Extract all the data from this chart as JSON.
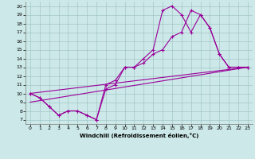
{
  "xlabel": "Windchill (Refroidissement éolien,°C)",
  "bg_color": "#cce8e8",
  "line_color": "#990099",
  "xlim": [
    -0.5,
    23.5
  ],
  "ylim": [
    6.5,
    20.5
  ],
  "xticks": [
    0,
    1,
    2,
    3,
    4,
    5,
    6,
    7,
    8,
    9,
    10,
    11,
    12,
    13,
    14,
    15,
    16,
    17,
    18,
    19,
    20,
    21,
    22,
    23
  ],
  "yticks": [
    7,
    8,
    9,
    10,
    11,
    12,
    13,
    14,
    15,
    16,
    17,
    18,
    19,
    20
  ],
  "series1_x": [
    0,
    1,
    2,
    3,
    4,
    5,
    6,
    7,
    8,
    9,
    10,
    11,
    12,
    13,
    14,
    15,
    16,
    17,
    18,
    19,
    20,
    21,
    22,
    23
  ],
  "series1_y": [
    10.0,
    9.5,
    8.5,
    7.5,
    8.0,
    8.0,
    7.5,
    7.0,
    10.5,
    11.0,
    13.0,
    13.0,
    13.5,
    14.5,
    15.0,
    16.5,
    17.0,
    19.5,
    19.0,
    17.5,
    14.5,
    13.0,
    13.0,
    13.0
  ],
  "series2_x": [
    0,
    1,
    2,
    3,
    4,
    5,
    6,
    7,
    8,
    9,
    10,
    11,
    12,
    13,
    14,
    15,
    16,
    17,
    18,
    19,
    20,
    21,
    22,
    23
  ],
  "series2_y": [
    10.0,
    9.5,
    8.5,
    7.5,
    8.0,
    8.0,
    7.5,
    7.0,
    11.0,
    11.5,
    13.0,
    13.0,
    14.0,
    15.0,
    19.5,
    20.0,
    19.0,
    17.0,
    19.0,
    17.5,
    14.5,
    13.0,
    13.0,
    13.0
  ],
  "line1_x": [
    0,
    23
  ],
  "line1_y": [
    10.0,
    13.0
  ],
  "line2_x": [
    0,
    23
  ],
  "line2_y": [
    9.0,
    13.0
  ]
}
